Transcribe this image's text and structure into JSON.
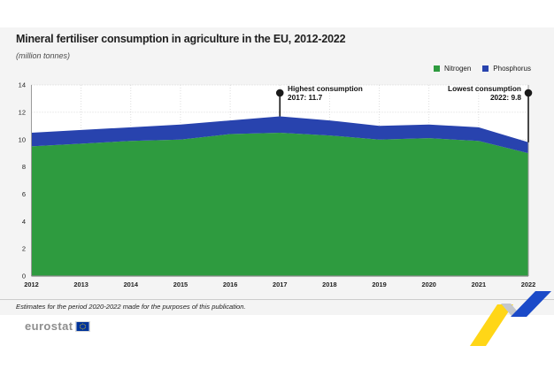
{
  "page": {
    "background": "#ffffff",
    "panel_background": "#f4f4f4"
  },
  "header": {
    "title": "Mineral fertiliser consumption in agriculture in the EU, 2012-2022",
    "subtitle": "(million tonnes)"
  },
  "legend": {
    "items": [
      {
        "label": "Nitrogen",
        "color": "#2e9b3f"
      },
      {
        "label": "Phosphorus",
        "color": "#2843ae"
      }
    ]
  },
  "annotations": {
    "highest": {
      "line1": "Highest consumption",
      "line2": "2017: 11.7",
      "year": 2017,
      "value": 11.7
    },
    "lowest": {
      "line1": "Lowest consumption",
      "line2": "2022: 9.8",
      "year": 2022,
      "value": 9.8
    }
  },
  "chart_data": {
    "type": "area",
    "stacked": true,
    "title": "Mineral fertiliser consumption in agriculture in the EU, 2012-2022",
    "unit": "million tonnes",
    "categories": [
      2012,
      2013,
      2014,
      2015,
      2016,
      2017,
      2018,
      2019,
      2020,
      2021,
      2022
    ],
    "series": [
      {
        "name": "Nitrogen",
        "color": "#2e9b3f",
        "values": [
          9.5,
          9.7,
          9.9,
          10.0,
          10.4,
          10.5,
          10.3,
          10.0,
          10.1,
          9.9,
          9.0
        ]
      },
      {
        "name": "Phosphorus",
        "color": "#2843ae",
        "values": [
          1.0,
          1.0,
          1.0,
          1.1,
          1.0,
          1.2,
          1.1,
          1.0,
          1.0,
          1.0,
          0.8
        ]
      }
    ],
    "totals": [
      10.5,
      10.7,
      10.9,
      11.1,
      11.4,
      11.7,
      11.4,
      11.0,
      11.1,
      10.9,
      9.8
    ],
    "ylim": [
      0,
      14
    ],
    "ytick_step": 2,
    "grid": "dotted",
    "legend_position": "top-right"
  },
  "footnote": "Estimates for the period 2020-2022 made for the purposes of this publication.",
  "logo": {
    "text": "eurostat"
  },
  "colors": {
    "nitrogen_green": "#2e9b3f",
    "phosphorus_blue": "#2843ae",
    "pin_black": "#1a1a1a",
    "eurostat_yellow": "#ffd617",
    "eurostat_blue": "#1b4ac8",
    "ribbon_grey": "#c4c7cc",
    "flag_blue": "#003399",
    "flag_stars": "#ffd617"
  }
}
